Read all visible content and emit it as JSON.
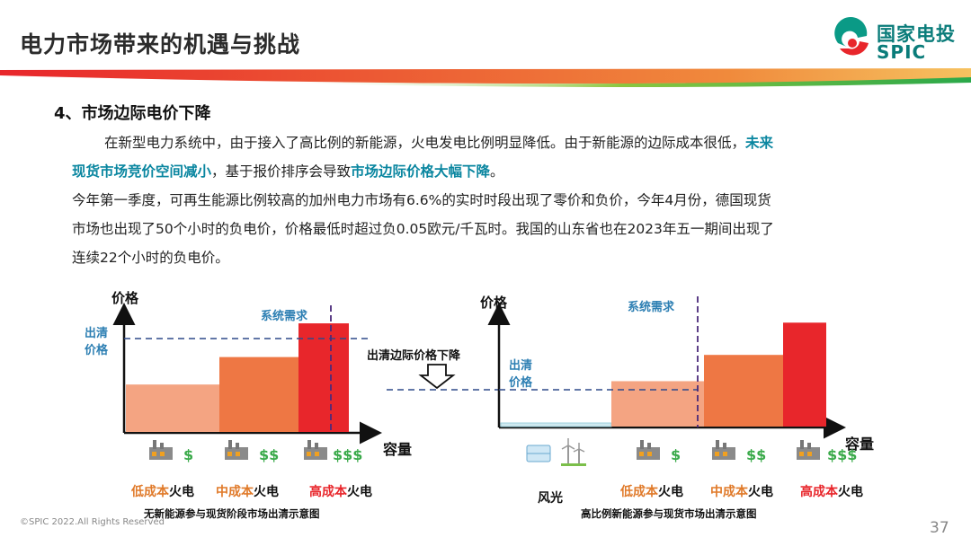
{
  "header": {
    "title": "电力市场带来的机遇与挑战",
    "logo_cn": "国家电投",
    "logo_en": "SPIC"
  },
  "section": {
    "heading": "4、市场边际电价下降",
    "p1_a": "在新型电力系统中，由于接入了高比例的新能源，火电发电比例明显降低。由于新能源的边际成本很低，",
    "p1_hl1_line1": "未来",
    "p1_hl1_line2": "现货市场竞价空间减小",
    "p1_b": "，基于报价排序会导致",
    "p1_hl2": "市场边际价格大幅下降",
    "p1_end": "。",
    "p2_line1": "今年第一季度，可再生能源比例较高的加州电力市场有6.6%的实时时段出现了零价和负价，今年4月份，德国现货",
    "p2_line2": "市场也出现了50个小时的负电价，价格最低时超过负0.05欧元/千瓦时。我国的山东省也在2023年五一期间出现了",
    "p2_line3": "连续22个小时的负电价。"
  },
  "left_chart": {
    "y_label": "价格",
    "x_label": "容量",
    "demand_label": "系统需求",
    "clearing_label_1": "出清",
    "clearing_label_2": "价格",
    "caption": "无新能源参与现货阶段市场出清示意图",
    "categories": [
      {
        "key": "low",
        "prefix": "低成本",
        "suffix": "火电",
        "price_symbol": "$"
      },
      {
        "key": "mid",
        "prefix": "中成本",
        "suffix": "火电",
        "price_symbol": "$$"
      },
      {
        "key": "high",
        "prefix": "高成本",
        "suffix": "火电",
        "price_symbol": "$$$"
      }
    ],
    "relative_price_levels": [
      0.38,
      0.6,
      0.87
    ],
    "colors": {
      "low": "#f4a482",
      "mid": "#ee7744",
      "high": "#e8262b"
    }
  },
  "middle": {
    "arrow_label": "出清边际价格下降"
  },
  "right_chart": {
    "y_label": "价格",
    "x_label": "容量",
    "demand_label": "系统需求",
    "clearing_label_1": "出清",
    "clearing_label_2": "价格",
    "caption": "高比例新能源参与现货市场出清示意图",
    "renewable_label": "风光",
    "categories": [
      {
        "key": "low",
        "prefix": "低成本",
        "suffix": "火电",
        "price_symbol": "$"
      },
      {
        "key": "mid",
        "prefix": "中成本",
        "suffix": "火电",
        "price_symbol": "$$"
      },
      {
        "key": "high",
        "prefix": "高成本",
        "suffix": "火电",
        "price_symbol": "$$$"
      }
    ],
    "relative_price_levels": [
      0.03,
      0.38,
      0.6,
      0.87
    ],
    "colors": {
      "renewable": "#cfe9ef",
      "low": "#f4a482",
      "mid": "#ee7744",
      "high": "#e8262b"
    }
  },
  "footer": {
    "copyright": "©SPIC 2022.All Rights Reserved",
    "page_number": "37"
  }
}
